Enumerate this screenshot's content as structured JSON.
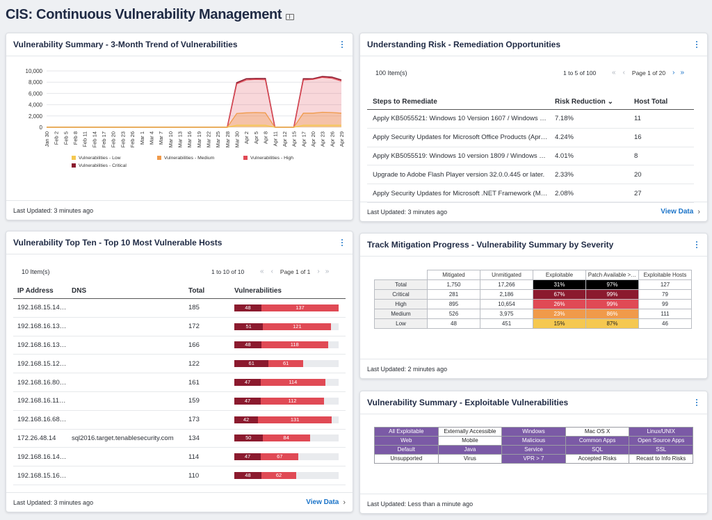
{
  "page": {
    "title": "CIS: Continuous Vulnerability Management"
  },
  "colors": {
    "low": "#f5c850",
    "medium": "#f09a4a",
    "high": "#e04a55",
    "critical": "#8b1a2e",
    "accent": "#1a73c8",
    "purple": "#7b5aa6"
  },
  "trend": {
    "title": "Vulnerability Summary - 3-Month Trend of Vulnerabilities",
    "updated": "Last Updated: 3 minutes ago",
    "chart_data": {
      "type": "area",
      "title": "Vulnerability Summary - 3-Month Trend of Vulnerabilities",
      "ylim": [
        0,
        10000
      ],
      "yticks": [
        "10,000",
        "8,000",
        "6,000",
        "4,000",
        "2,000",
        "0"
      ],
      "categories": [
        "Jan 30",
        "Feb 2",
        "Feb 5",
        "Feb 8",
        "Feb 11",
        "Feb 14",
        "Feb 17",
        "Feb 20",
        "Feb 23",
        "Feb 26",
        "Mar 1",
        "Mar 4",
        "Mar 7",
        "Mar 10",
        "Mar 13",
        "Mar 16",
        "Mar 19",
        "Mar 22",
        "Mar 25",
        "Mar 28",
        "Mar 30",
        "Apr 2",
        "Apr 5",
        "Apr 8",
        "Apr 11",
        "Apr 12",
        "Apr 15",
        "Apr 17",
        "Apr 20",
        "Apr 23",
        "Apr 26",
        "Apr 29"
      ],
      "series": [
        {
          "name": "Vulnerabilities - Low",
          "values": [
            0,
            0,
            0,
            0,
            0,
            0,
            0,
            0,
            0,
            0,
            0,
            0,
            0,
            0,
            0,
            0,
            0,
            0,
            0,
            0,
            350,
            350,
            350,
            350,
            0,
            0,
            0,
            350,
            350,
            350,
            350,
            350
          ]
        },
        {
          "name": "Vulnerabilities - Medium",
          "values": [
            0,
            0,
            0,
            0,
            0,
            0,
            0,
            0,
            0,
            0,
            0,
            0,
            0,
            0,
            0,
            0,
            0,
            0,
            0,
            0,
            2450,
            2550,
            2600,
            2550,
            0,
            0,
            0,
            2500,
            2500,
            2650,
            2600,
            2500
          ]
        },
        {
          "name": "Vulnerabilities - High",
          "values": [
            0,
            0,
            0,
            0,
            0,
            0,
            0,
            0,
            0,
            0,
            0,
            0,
            0,
            0,
            0,
            0,
            0,
            0,
            0,
            0,
            7700,
            8400,
            8500,
            8450,
            0,
            0,
            0,
            8400,
            8500,
            8850,
            8700,
            8200
          ]
        },
        {
          "name": "Vulnerabilities - Critical",
          "values": [
            0,
            0,
            0,
            0,
            0,
            0,
            0,
            0,
            0,
            0,
            0,
            0,
            0,
            0,
            0,
            0,
            0,
            0,
            0,
            0,
            7900,
            8600,
            8650,
            8650,
            0,
            0,
            0,
            8600,
            8600,
            9000,
            8900,
            8400
          ]
        }
      ],
      "legend": [
        "Vulnerabilities - Low",
        "Vulnerabilities - Medium",
        "Vulnerabilities - High",
        "Vulnerabilities - Critical"
      ]
    }
  },
  "risk": {
    "title": "Understanding Risk - Remediation Opportunities",
    "items": "100 Item(s)",
    "range": "1 to 5 of 100",
    "page": "Page 1 of 20",
    "headers": [
      "Steps to Remediate",
      "Risk Reduction",
      "Host Total"
    ],
    "rows": [
      [
        "Apply KB5055521: Windows 10 Version 1607 / Windows Server 2016",
        "7.18%",
        "11"
      ],
      [
        "Apply Security Updates for Microsoft Office Products (April 2025)",
        "4.24%",
        "16"
      ],
      [
        "Apply KB5055519: Windows 10 version 1809 / Windows Server 2019",
        "4.01%",
        "8"
      ],
      [
        "Upgrade to Adobe Flash Player version 32.0.0.445 or later.",
        "2.33%",
        "20"
      ],
      [
        "Apply Security Updates for Microsoft .NET Framework (March 2025)",
        "2.08%",
        "27"
      ]
    ],
    "updated": "Last Updated: 3 minutes ago",
    "view": "View Data"
  },
  "hosts": {
    "title": "Vulnerability Top Ten - Top 10 Most Vulnerable Hosts",
    "items": "10 Item(s)",
    "range": "1 to 10 of 10",
    "page": "Page 1 of 1",
    "headers": [
      "IP Address",
      "DNS",
      "Total",
      "Vulnerabilities"
    ],
    "max": 185,
    "rows": [
      {
        "ip": "192.168.15.14…",
        "dns": "",
        "total": "185",
        "crit": 48,
        "high": 137
      },
      {
        "ip": "192.168.16.13…",
        "dns": "",
        "total": "172",
        "crit": 51,
        "high": 121
      },
      {
        "ip": "192.168.16.13…",
        "dns": "",
        "total": "166",
        "crit": 48,
        "high": 118
      },
      {
        "ip": "192.168.15.12…",
        "dns": "",
        "total": "122",
        "crit": 61,
        "high": 61
      },
      {
        "ip": "192.168.16.80…",
        "dns": "",
        "total": "161",
        "crit": 47,
        "high": 114
      },
      {
        "ip": "192.168.16.11…",
        "dns": "",
        "total": "159",
        "crit": 47,
        "high": 112
      },
      {
        "ip": "192.168.16.68…",
        "dns": "",
        "total": "173",
        "crit": 42,
        "high": 131
      },
      {
        "ip": "172.26.48.14",
        "dns": "sql2016.target.tenablesecurity.com",
        "total": "134",
        "crit": 50,
        "high": 84
      },
      {
        "ip": "192.168.16.14…",
        "dns": "",
        "total": "114",
        "crit": 47,
        "high": 67
      },
      {
        "ip": "192.168.15.16…",
        "dns": "",
        "total": "110",
        "crit": 48,
        "high": 62
      }
    ],
    "updated": "Last Updated: 3 minutes ago",
    "view": "View Data"
  },
  "mitigation": {
    "title": "Track Mitigation Progress - Vulnerability Summary by Severity",
    "headers": [
      "",
      "Mitigated",
      "Unmitigated",
      "Exploitable",
      "Patch Available >…",
      "Exploitable Hosts"
    ],
    "rows": [
      {
        "label": "Total",
        "mit": "1,750",
        "unmit": "17,266",
        "exp": "31%",
        "patch": "97%",
        "hosts": "127",
        "expColor": "#000000",
        "patchColor": "#000000"
      },
      {
        "label": "Critical",
        "mit": "281",
        "unmit": "2,186",
        "exp": "67%",
        "patch": "99%",
        "hosts": "79",
        "expColor": "#8b1a2e",
        "patchColor": "#8b1a2e"
      },
      {
        "label": "High",
        "mit": "895",
        "unmit": "10,654",
        "exp": "26%",
        "patch": "99%",
        "hosts": "99",
        "expColor": "#e04a55",
        "patchColor": "#e04a55"
      },
      {
        "label": "Medium",
        "mit": "526",
        "unmit": "3,975",
        "exp": "23%",
        "patch": "86%",
        "hosts": "111",
        "expColor": "#f09a4a",
        "patchColor": "#f09a4a"
      },
      {
        "label": "Low",
        "mit": "48",
        "unmit": "451",
        "exp": "15%",
        "patch": "87%",
        "hosts": "46",
        "expColor": "#f5c850",
        "patchColor": "#f5c850"
      }
    ],
    "updated": "Last Updated: 2 minutes ago"
  },
  "exploitable": {
    "title": "Vulnerability Summary - Exploitable Vulnerabilities",
    "grid": [
      [
        {
          "t": "All Exploitable",
          "p": 1
        },
        {
          "t": "Externally Accessible",
          "p": 0
        },
        {
          "t": "Windows",
          "p": 1
        },
        {
          "t": "Mac OS X",
          "p": 0
        },
        {
          "t": "Linux/UNIX",
          "p": 1
        }
      ],
      [
        {
          "t": "Web",
          "p": 1
        },
        {
          "t": "Mobile",
          "p": 0
        },
        {
          "t": "Malicious",
          "p": 1
        },
        {
          "t": "Common Apps",
          "p": 1
        },
        {
          "t": "Open Source Apps",
          "p": 1
        }
      ],
      [
        {
          "t": "Default",
          "p": 1
        },
        {
          "t": "Java",
          "p": 1
        },
        {
          "t": "Service",
          "p": 1
        },
        {
          "t": "SQL",
          "p": 1
        },
        {
          "t": "SSL",
          "p": 1
        }
      ],
      [
        {
          "t": "Unsupported",
          "p": 0
        },
        {
          "t": "Virus",
          "p": 0
        },
        {
          "t": "VPR > 7",
          "p": 1
        },
        {
          "t": "Accepted Risks",
          "p": 0
        },
        {
          "t": "Recast to Info Risks",
          "p": 0
        }
      ]
    ],
    "updated": "Last Updated: Less than a minute ago"
  }
}
